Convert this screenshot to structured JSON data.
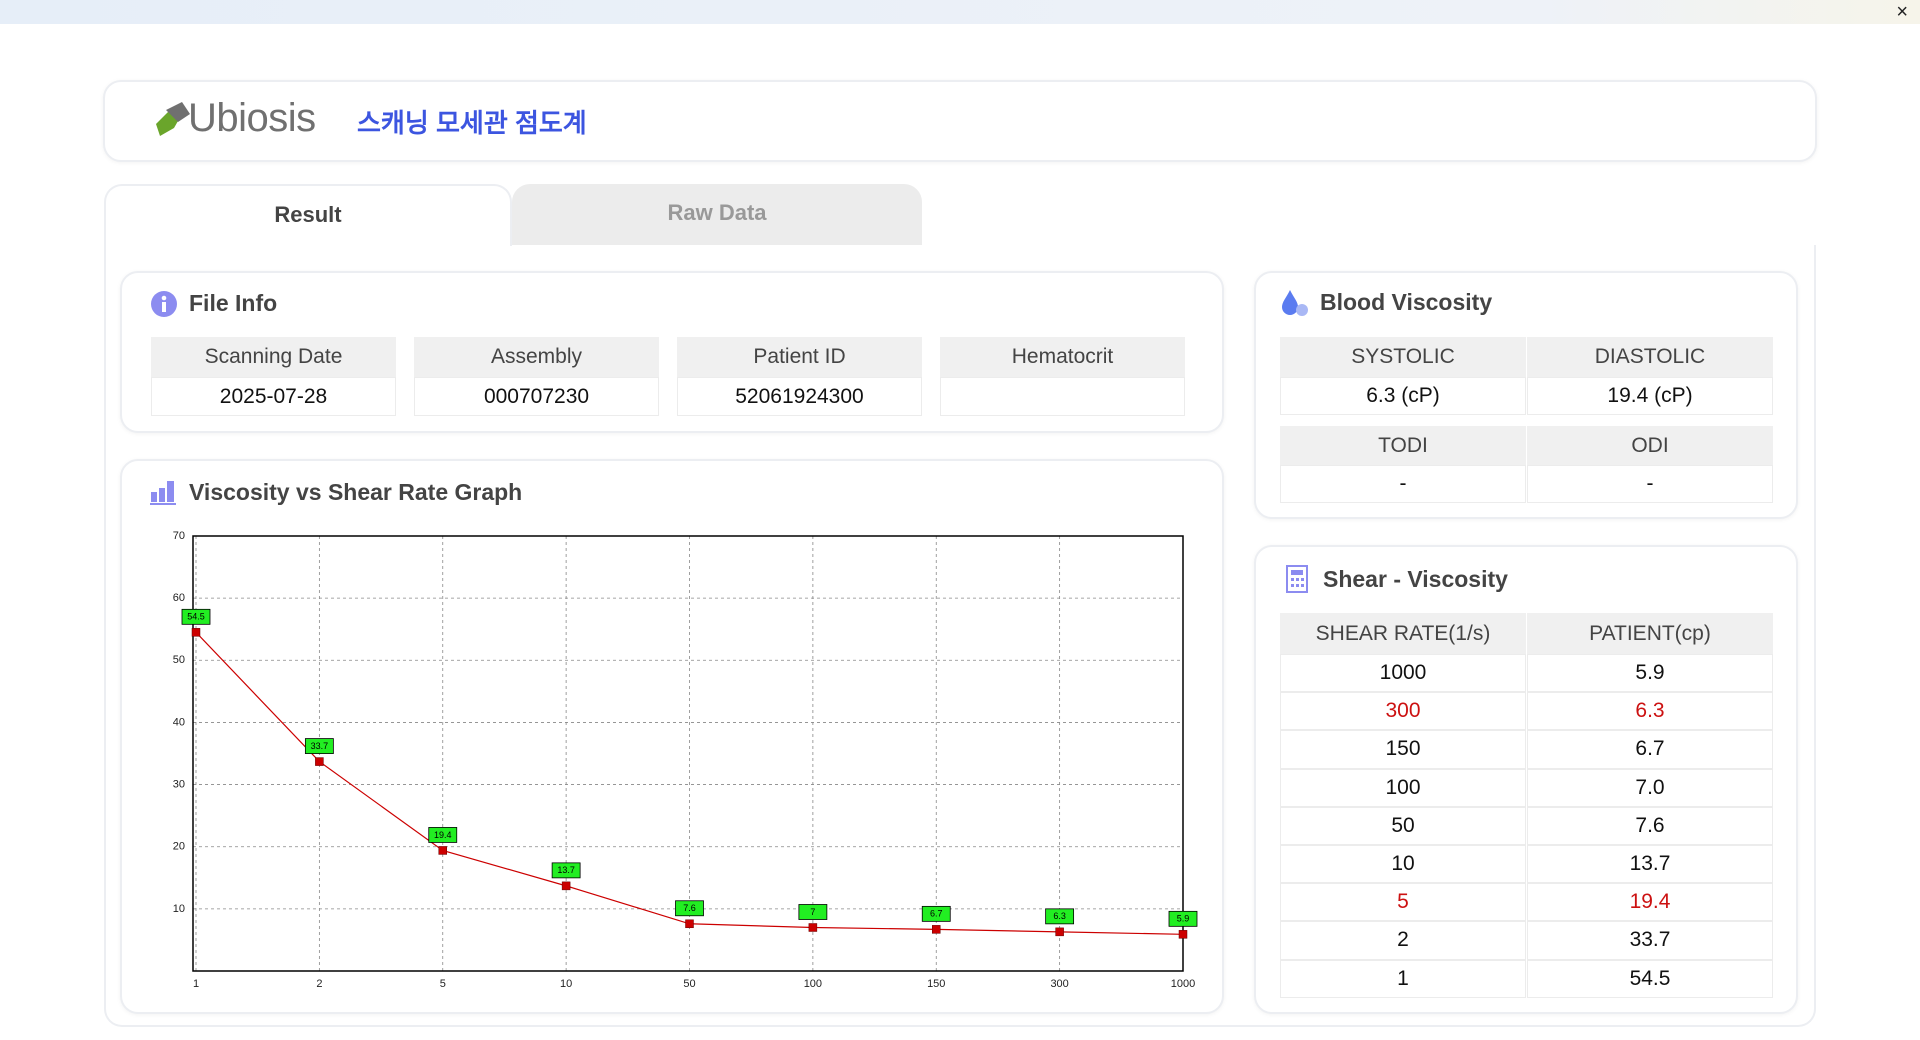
{
  "window": {
    "close": "×"
  },
  "header": {
    "logo": "Ubiosis",
    "title": "스캐닝 모세관 점도계"
  },
  "tabs": [
    "Result",
    "Raw Data"
  ],
  "file_info": {
    "title": "File Info",
    "headers": [
      "Scanning Date",
      "Assembly",
      "Patient ID",
      "Hematocrit"
    ],
    "values": [
      "2025-07-28",
      "000707230",
      "52061924300",
      null
    ]
  },
  "blood_viscosity": {
    "title": "Blood Viscosity",
    "rows": [
      {
        "headers": [
          "SYSTOLIC",
          "DIASTOLIC"
        ],
        "values": [
          "6.3 (cP)",
          "19.4 (cP)"
        ]
      },
      {
        "headers": [
          "TODI",
          "ODI"
        ],
        "values": [
          "-",
          "-"
        ]
      }
    ]
  },
  "shear_viscosity": {
    "title": "Shear - Viscosity",
    "headers": [
      "SHEAR RATE(1/s)",
      "PATIENT(cp)"
    ],
    "rows": [
      [
        "1000",
        "5.9"
      ],
      [
        "300",
        "6.3"
      ],
      [
        "150",
        "6.7"
      ],
      [
        "100",
        "7.0"
      ],
      [
        "50",
        "7.6"
      ],
      [
        "10",
        "13.7"
      ],
      [
        "5",
        "19.4"
      ],
      [
        "2",
        "33.7"
      ],
      [
        "1",
        "54.5"
      ]
    ]
  },
  "chart_data": {
    "type": "line",
    "title": "Viscosity vs Shear Rate Graph",
    "categories": [
      "1",
      "2",
      "5",
      "10",
      "50",
      "100",
      "150",
      "300",
      "1000"
    ],
    "values": [
      54.5,
      33.7,
      19.4,
      13.7,
      7.6,
      7,
      6.7,
      6.3,
      5.9
    ],
    "color": "#cc0000",
    "label_color": "#22ee22",
    "ylim": [
      0,
      70
    ],
    "yticks": [
      10,
      20,
      30,
      40,
      50,
      60,
      70
    ],
    "grid": true
  }
}
